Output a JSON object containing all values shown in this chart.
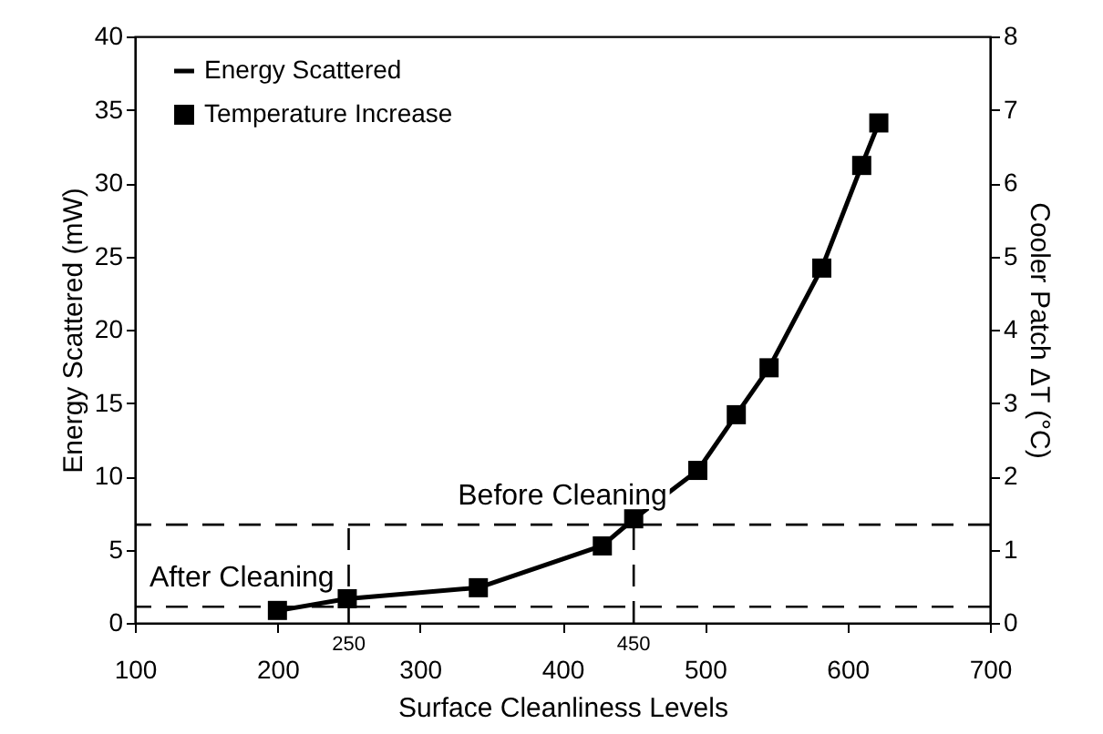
{
  "chart_data": {
    "type": "line",
    "xlabel": "Surface Cleanliness Levels",
    "ylabel": "Energy Scattered (mW)",
    "y2label": "Cooler Patch ΔT (°C)",
    "x": [
      200,
      249,
      341,
      428,
      450,
      495,
      522,
      545,
      582,
      610,
      622
    ],
    "series": [
      {
        "name": "Energy Scattered",
        "color": "#000000",
        "values": [
          0.83,
          1.65,
          2.4,
          5.27,
          7.08,
          10.4,
          14.2,
          17.4,
          24.2,
          31.2,
          34.1
        ]
      },
      {
        "name": "Temperature Increase",
        "type": "scatter",
        "marker": "square",
        "axis": "y2",
        "color": "#000000",
        "values": [
          0.17,
          0.33,
          0.48,
          1.05,
          1.42,
          2.08,
          2.84,
          3.48,
          4.84,
          6.24,
          6.82
        ]
      }
    ],
    "xlim": [
      100,
      700
    ],
    "xticks": [
      100,
      200,
      300,
      400,
      500,
      600,
      700
    ],
    "ylim": [
      0,
      40
    ],
    "yticks": [
      0,
      5,
      10,
      15,
      20,
      25,
      30,
      35,
      40
    ],
    "y2lim": [
      0,
      8
    ],
    "y2ticks": [
      0,
      1,
      2,
      3,
      4,
      5,
      6,
      7,
      8
    ],
    "ref_lines": [
      {
        "axis": "y",
        "value": 6.7,
        "label": "Before Cleaning",
        "line_style": "dashed"
      },
      {
        "axis": "y",
        "value": 1.1,
        "label": "After Cleaning",
        "line_style": "dashed"
      },
      {
        "axis": "x",
        "value": 250,
        "label": "250",
        "line_style": "dashed"
      },
      {
        "axis": "x",
        "value": 450,
        "label": "450",
        "line_style": "dashed"
      }
    ],
    "legend": "top left",
    "grid": false,
    "line_style": "solid"
  }
}
